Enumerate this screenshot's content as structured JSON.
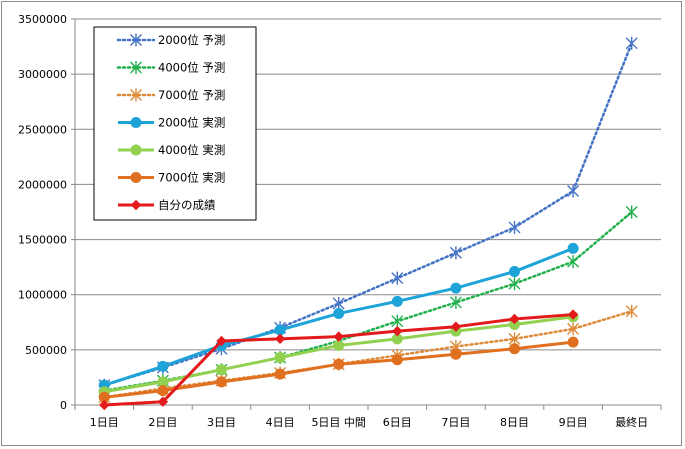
{
  "chart_data": {
    "type": "line",
    "title": "",
    "xlabel": "",
    "ylabel": "",
    "ylim": [
      0,
      3500000
    ],
    "yticks": [
      0,
      500000,
      1000000,
      1500000,
      2000000,
      2500000,
      3000000,
      3500000
    ],
    "ytick_labels": [
      "0",
      "500000",
      "1000000",
      "1500000",
      "2000000",
      "2500000",
      "3000000",
      "3500000"
    ],
    "categories": [
      "1日目",
      "2日目",
      "3日目",
      "4日目",
      "5日目 中間",
      "6日目",
      "7日目",
      "8日目",
      "9日目",
      "最終日"
    ],
    "grid": true,
    "legend_position": "top-left",
    "series": [
      {
        "name": "2000位 予測",
        "color": "#4472C4",
        "style": "dotted",
        "marker": "star",
        "values": [
          180000,
          340000,
          510000,
          700000,
          920000,
          1150000,
          1380000,
          1610000,
          1940000,
          3280000
        ]
      },
      {
        "name": "4000位 予測",
        "color": "#22B04C",
        "style": "dotted",
        "marker": "star",
        "values": [
          130000,
          220000,
          320000,
          430000,
          580000,
          760000,
          930000,
          1100000,
          1300000,
          1750000
        ]
      },
      {
        "name": "7000位 予測",
        "color": "#DD8A3A",
        "style": "dotted",
        "marker": "star",
        "values": [
          70000,
          150000,
          220000,
          290000,
          370000,
          450000,
          530000,
          600000,
          690000,
          850000
        ]
      },
      {
        "name": "2000位 実測",
        "color": "#1EA3D8",
        "style": "solid",
        "marker": "circle",
        "values": [
          180000,
          350000,
          540000,
          680000,
          830000,
          940000,
          1060000,
          1210000,
          1420000,
          null
        ]
      },
      {
        "name": "4000位 実測",
        "color": "#92D050",
        "style": "solid",
        "marker": "circle",
        "values": [
          120000,
          210000,
          320000,
          430000,
          540000,
          600000,
          670000,
          730000,
          800000,
          null
        ]
      },
      {
        "name": "7000位 実測",
        "color": "#E07020",
        "style": "solid",
        "marker": "circle",
        "values": [
          70000,
          130000,
          210000,
          280000,
          370000,
          410000,
          460000,
          510000,
          570000,
          null
        ]
      },
      {
        "name": "自分の成績",
        "color": "#E31A1C",
        "style": "solid",
        "marker": "diamond",
        "values": [
          0,
          30000,
          580000,
          600000,
          620000,
          670000,
          710000,
          780000,
          820000,
          null
        ]
      }
    ]
  }
}
